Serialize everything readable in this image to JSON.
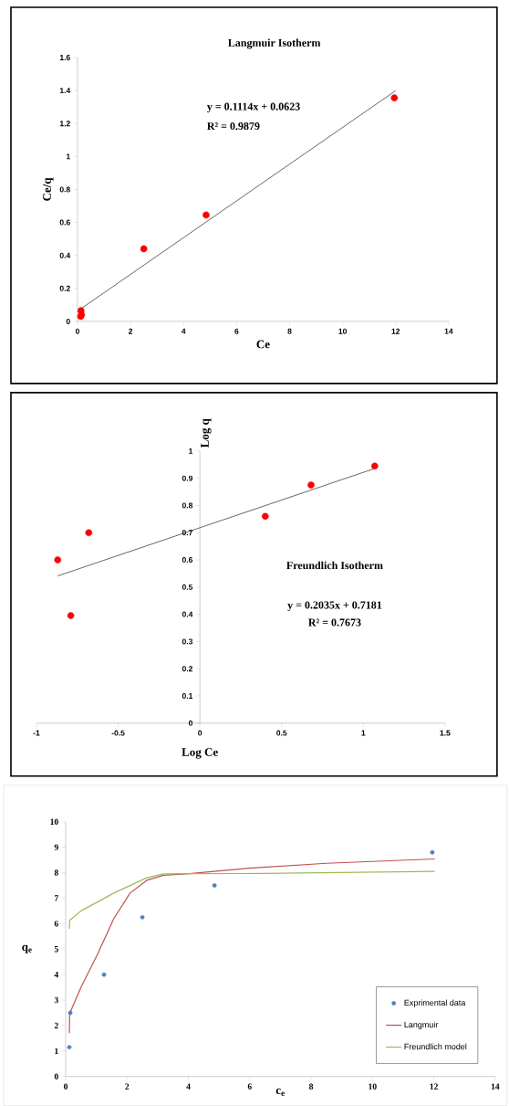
{
  "chart_data": [
    {
      "type": "scatter",
      "title": "Langmuir Isotherm",
      "xlabel": "Ce",
      "ylabel": "Ce/q",
      "xlim": [
        0,
        14
      ],
      "ylim": [
        0,
        1.6
      ],
      "xticks": [
        0,
        2,
        4,
        6,
        8,
        10,
        12,
        14
      ],
      "yticks": [
        0,
        0.2,
        0.4,
        0.6,
        0.8,
        1,
        1.2,
        1.4,
        1.6
      ],
      "series": [
        {
          "type": "scatter",
          "marker": "circle",
          "color": "#ff0000",
          "x": [
            0.12,
            0.13,
            0.15,
            2.5,
            4.85,
            11.95
          ],
          "values": [
            0.03,
            0.065,
            0.04,
            0.44,
            0.645,
            1.355
          ]
        },
        {
          "type": "line",
          "color": "#000000",
          "x": [
            0.15,
            12
          ],
          "values": [
            0.079,
            1.399
          ]
        }
      ],
      "annotations": [
        "y = 0.1114x + 0.0623",
        "R² = 0.9879"
      ]
    },
    {
      "type": "scatter",
      "title": "Freundlich Isotherm",
      "xlabel": "Log Ce",
      "ylabel": "Log q",
      "xlim": [
        -1,
        1.5
      ],
      "ylim": [
        0,
        1
      ],
      "xticks": [
        -1,
        -0.5,
        0,
        0.5,
        1,
        1.5
      ],
      "yticks": [
        0,
        0.1,
        0.2,
        0.3,
        0.4,
        0.5,
        0.6,
        0.7,
        0.8,
        0.9,
        1
      ],
      "series": [
        {
          "type": "scatter",
          "marker": "circle",
          "color": "#ff0000",
          "x": [
            -0.87,
            -0.79,
            -0.68,
            0.4,
            0.68,
            1.07
          ],
          "values": [
            0.6,
            0.395,
            0.7,
            0.76,
            0.875,
            0.945
          ]
        },
        {
          "type": "line",
          "color": "#000000",
          "x": [
            -0.87,
            1.07
          ],
          "values": [
            0.541,
            0.936
          ]
        }
      ],
      "annotations": [
        "y = 0.2035x + 0.7181",
        "R² = 0.7673"
      ]
    },
    {
      "type": "scatter",
      "xlabel": "c$_{e}$",
      "ylabel": "q$_{e}$",
      "legend": "bottom right",
      "xlim": [
        0,
        14
      ],
      "ylim": [
        0,
        10
      ],
      "xticks": [
        0,
        2,
        4,
        6,
        8,
        10,
        12,
        14
      ],
      "yticks": [
        0,
        1,
        2,
        3,
        4,
        5,
        6,
        7,
        8,
        9,
        10
      ],
      "series": [
        {
          "type": "scatter",
          "marker": "circle",
          "name": "Exprimental data",
          "color": "#4f81bd",
          "x": [
            0.12,
            0.15,
            1.25,
            2.5,
            4.85,
            11.95
          ],
          "values": [
            1.15,
            2.5,
            4.0,
            6.25,
            7.5,
            8.8
          ]
        },
        {
          "type": "line",
          "name": "Langmuir",
          "color": "#c0504d",
          "x": [
            0.12,
            0.13,
            0.5,
            1.04,
            1.57,
            2.1,
            2.64,
            3.18,
            4.03,
            5.96,
            8.5,
            12.03
          ],
          "values": [
            1.7,
            2.47,
            3.5,
            4.8,
            6.2,
            7.2,
            7.7,
            7.9,
            7.96,
            8.18,
            8.37,
            8.54
          ]
        },
        {
          "type": "line",
          "name": "Freundlich model",
          "color": "#9bbb59",
          "x": [
            0.12,
            0.13,
            0.5,
            1.57,
            2.64,
            3.18,
            4.03,
            6.4,
            12.03
          ],
          "values": [
            5.8,
            6.13,
            6.5,
            7.2,
            7.8,
            7.95,
            7.96,
            7.97,
            8.05
          ]
        }
      ]
    }
  ]
}
